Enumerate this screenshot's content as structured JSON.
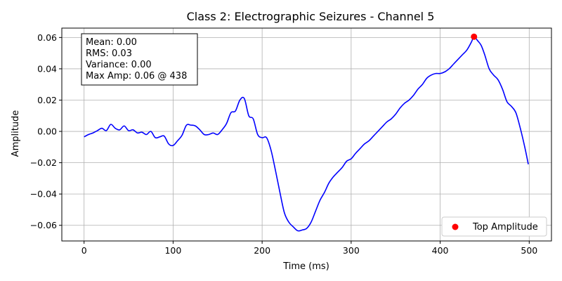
{
  "chart_data": {
    "type": "line",
    "title": "Class 2: Electrographic Seizures - Channel 5",
    "xlabel": "Time (ms)",
    "ylabel": "Amplitude",
    "xlim": [
      -25,
      525
    ],
    "ylim": [
      -0.07,
      0.066
    ],
    "grid": true,
    "x_ticks": [
      0,
      100,
      200,
      300,
      400,
      500
    ],
    "y_ticks": [
      -0.06,
      -0.04,
      -0.02,
      0.0,
      0.02,
      0.04,
      0.06
    ],
    "x_tick_labels": [
      "0",
      "100",
      "200",
      "300",
      "400",
      "500"
    ],
    "y_tick_labels": [
      "−0.06",
      "−0.04",
      "−0.02",
      "0.00",
      "0.02",
      "0.04",
      "0.06"
    ],
    "series": [
      {
        "color": "#0000ff",
        "x": [
          0,
          5,
          10,
          15,
          20,
          25,
          30,
          35,
          40,
          45,
          50,
          55,
          60,
          65,
          70,
          75,
          80,
          85,
          90,
          95,
          100,
          105,
          110,
          115,
          120,
          125,
          130,
          135,
          140,
          145,
          150,
          155,
          160,
          165,
          170,
          175,
          180,
          185,
          190,
          195,
          200,
          205,
          210,
          215,
          220,
          225,
          230,
          235,
          240,
          245,
          250,
          255,
          260,
          265,
          270,
          275,
          280,
          285,
          290,
          295,
          300,
          305,
          310,
          315,
          320,
          325,
          330,
          335,
          340,
          345,
          350,
          355,
          360,
          365,
          370,
          375,
          380,
          385,
          390,
          395,
          400,
          405,
          410,
          415,
          420,
          425,
          430,
          435,
          438,
          442,
          446,
          450,
          455,
          460,
          465,
          470,
          475,
          480,
          485,
          490,
          495,
          499
        ],
        "y": [
          -0.0035,
          -0.002,
          -0.001,
          0.0005,
          0.002,
          0.0005,
          0.0045,
          0.002,
          0.001,
          0.0035,
          0.0005,
          0.001,
          -0.001,
          -0.0005,
          -0.002,
          0.0,
          -0.004,
          -0.0035,
          -0.003,
          -0.008,
          -0.009,
          -0.006,
          -0.0025,
          0.004,
          0.004,
          0.0035,
          0.001,
          -0.002,
          -0.002,
          -0.001,
          -0.002,
          0.001,
          0.005,
          0.012,
          0.013,
          0.02,
          0.021,
          0.01,
          0.008,
          -0.002,
          -0.004,
          -0.004,
          -0.012,
          -0.025,
          -0.039,
          -0.052,
          -0.058,
          -0.061,
          -0.0635,
          -0.063,
          -0.062,
          -0.058,
          -0.051,
          -0.044,
          -0.039,
          -0.033,
          -0.029,
          -0.026,
          -0.023,
          -0.019,
          -0.0175,
          -0.014,
          -0.011,
          -0.008,
          -0.006,
          -0.003,
          0.0,
          0.003,
          0.006,
          0.008,
          0.011,
          0.015,
          0.018,
          0.02,
          0.023,
          0.027,
          0.03,
          0.034,
          0.036,
          0.037,
          0.037,
          0.038,
          0.04,
          0.043,
          0.046,
          0.049,
          0.052,
          0.057,
          0.0605,
          0.058,
          0.055,
          0.049,
          0.04,
          0.036,
          0.033,
          0.027,
          0.019,
          0.016,
          0.012,
          0.002,
          -0.01,
          -0.021
        ]
      }
    ],
    "highlight_point": {
      "x": 438,
      "y": 0.0605,
      "color": "#ff0000",
      "label": "Top Amplitude"
    },
    "stats_box": {
      "lines": [
        "Mean: 0.00",
        "RMS: 0.03",
        "Variance: 0.00",
        "Max Amp: 0.06 @ 438"
      ]
    },
    "legend": {
      "position": "lower-right",
      "entries": [
        "Top Amplitude"
      ]
    }
  }
}
